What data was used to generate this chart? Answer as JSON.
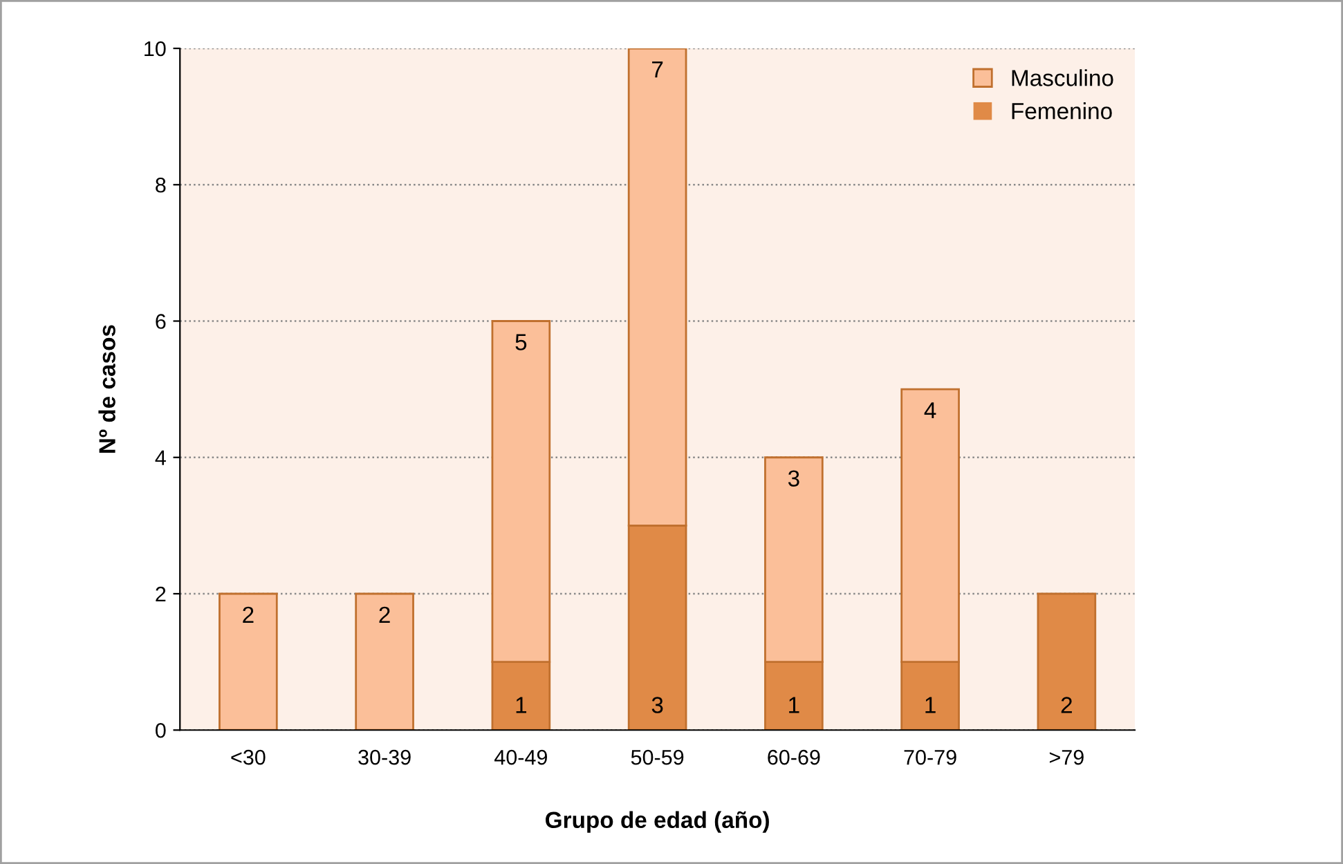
{
  "chart_data": {
    "type": "bar",
    "stacked": true,
    "xlabel": "Grupo de edad (año)",
    "ylabel": "Nº de casos",
    "categories": [
      "<30",
      "30-39",
      "40-49",
      "50-59",
      "60-69",
      "70-79",
      ">79"
    ],
    "series": [
      {
        "name": "Femenino",
        "color": "#e08a47",
        "values": [
          0,
          0,
          1,
          3,
          1,
          1,
          2
        ],
        "value_labels": [
          null,
          null,
          "1",
          "3",
          "1",
          "1",
          "2"
        ]
      },
      {
        "name": "Masculino",
        "color": "#fbbf99",
        "values": [
          2,
          2,
          5,
          7,
          3,
          4,
          0
        ],
        "value_labels": [
          "2",
          "2",
          "5",
          "7",
          "3",
          "4",
          null
        ]
      }
    ],
    "ylim": [
      0,
      10
    ],
    "yticks": [
      0,
      2,
      4,
      6,
      8,
      10
    ],
    "grid": "y",
    "legend": "top right"
  }
}
